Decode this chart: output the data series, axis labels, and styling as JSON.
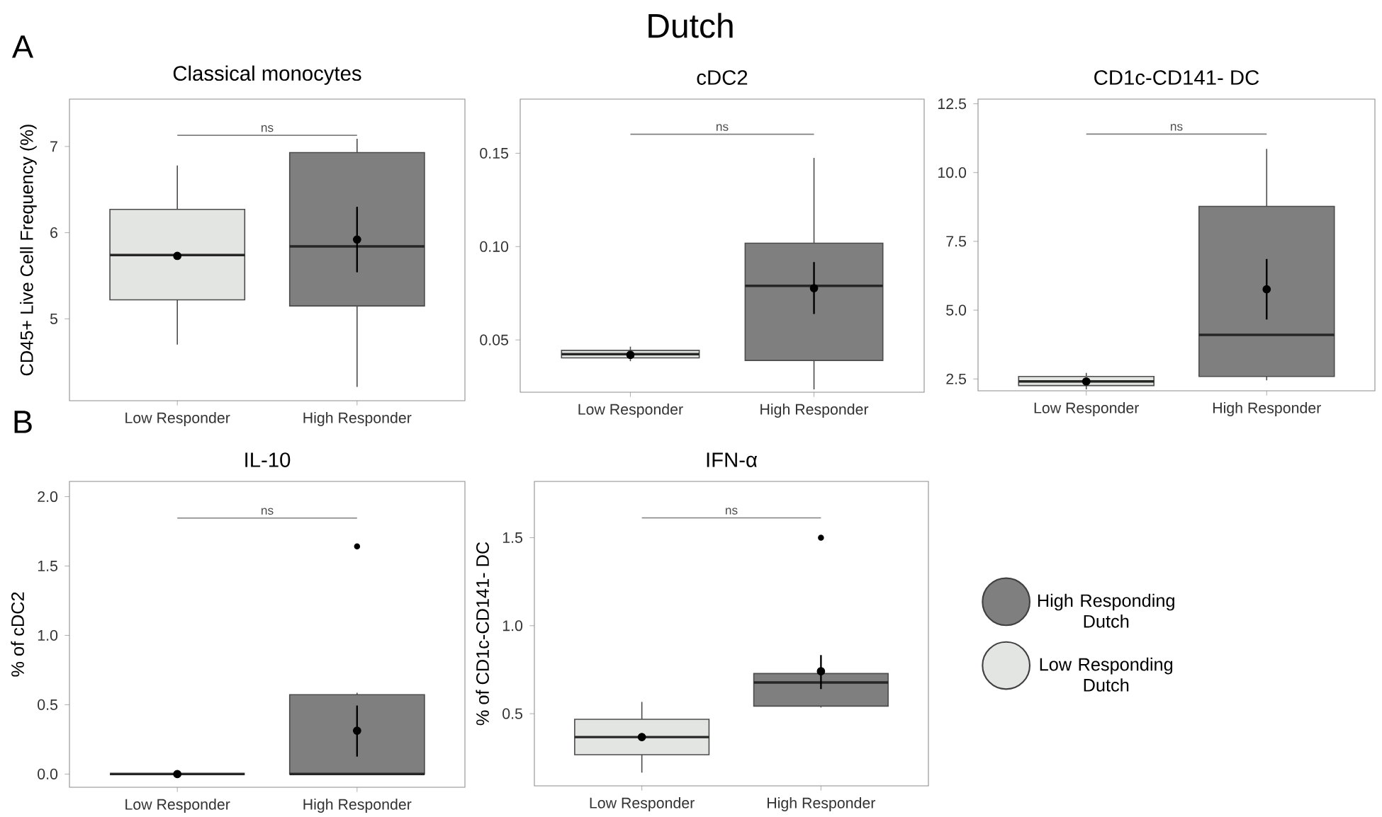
{
  "chart_data": [
    {
      "type": "other",
      "title": "Dutch",
      "annotations": [
        "A",
        "B"
      ]
    },
    {
      "type": "box",
      "title": "Classical monocytes",
      "ylabel": "CD45+ Live Cell Frequency (%)",
      "categories": [
        "Low Responder",
        "High Responder"
      ],
      "ylim": [
        4.05,
        7.55
      ],
      "yticks": [
        5,
        6,
        7
      ],
      "marker": "circle",
      "annotations": [
        "ns"
      ],
      "series": [
        {
          "color": "#e2e5e1",
          "boxes": [
            {
              "low": 4.7,
              "q1": 5.22,
              "median": 5.74,
              "q3": 6.27,
              "high": 6.78
            },
            null
          ]
        },
        {
          "color": "#7f7f7f",
          "boxes": [
            null,
            {
              "low": 4.21,
              "q1": 5.15,
              "median": 5.84,
              "q3": 6.93,
              "high": 7.09
            }
          ]
        },
        {
          "type": "scatter",
          "color": "#000000",
          "x": [
            "Low Responder",
            "High Responder"
          ],
          "values": [
            5.73,
            5.92
          ],
          "errors": [
            null,
            [
              5.54,
              6.3
            ]
          ]
        }
      ]
    },
    {
      "type": "box",
      "title": "cDC2",
      "categories": [
        "Low Responder",
        "High Responder"
      ],
      "ylim": [
        0.022,
        0.179
      ],
      "yticks": [
        0.05,
        {
          "value": 0.1,
          "label": "0.10"
        },
        0.15
      ],
      "marker": "circle",
      "annotations": [
        "ns"
      ],
      "series": [
        {
          "color": "#e2e5e1",
          "boxes": [
            {
              "low": 0.0386,
              "q1": 0.0404,
              "median": 0.0424,
              "q3": 0.0444,
              "high": 0.0464
            },
            null
          ]
        },
        {
          "color": "#7f7f7f",
          "boxes": [
            null,
            {
              "low": 0.0235,
              "q1": 0.039,
              "median": 0.079,
              "q3": 0.1018,
              "high": 0.1475
            }
          ]
        },
        {
          "type": "scatter",
          "color": "#000000",
          "x": [
            "Low Responder",
            "High Responder"
          ],
          "values": [
            0.042,
            0.0777
          ],
          "errors": [
            null,
            [
              0.0639,
              0.0917
            ]
          ]
        }
      ]
    },
    {
      "type": "box",
      "title": "CD1c-CD141- DC",
      "categories": [
        "Low Responder",
        "High Responder"
      ],
      "ylim": [
        2.07,
        12.67
      ],
      "yticks": [
        2.5,
        {
          "value": 5,
          "label": "5.0"
        },
        7.5,
        {
          "value": 10,
          "label": "10.0"
        },
        12.5
      ],
      "marker": "circle",
      "annotations": [
        "ns"
      ],
      "series": [
        {
          "color": "#e2e5e1",
          "boxes": [
            {
              "low": 2.12,
              "q1": 2.26,
              "median": 2.41,
              "q3": 2.59,
              "high": 2.72
            },
            null
          ]
        },
        {
          "color": "#7f7f7f",
          "boxes": [
            null,
            {
              "low": 2.45,
              "q1": 2.59,
              "median": 4.1,
              "q3": 8.77,
              "high": 10.86
            }
          ]
        },
        {
          "type": "scatter",
          "color": "#000000",
          "x": [
            "Low Responder",
            "High Responder"
          ],
          "values": [
            2.41,
            5.76
          ],
          "errors": [
            null,
            [
              4.66,
              6.86
            ]
          ]
        }
      ]
    },
    {
      "type": "box",
      "title": "IL-10",
      "ylabel": "% of cDC2",
      "categories": [
        "Low Responder",
        "High Responder"
      ],
      "ylim": [
        -0.095,
        2.11
      ],
      "yticks": [
        {
          "value": 0,
          "label": "0.0"
        },
        0.5,
        {
          "value": 1,
          "label": "1.0"
        },
        1.5,
        {
          "value": 2,
          "label": "2.0"
        }
      ],
      "marker": "circle",
      "annotations": [
        "ns"
      ],
      "series": [
        {
          "color": "#e2e5e1",
          "boxes": [
            {
              "low": 0,
              "q1": 0,
              "median": 0,
              "q3": 0,
              "high": 0
            },
            null
          ]
        },
        {
          "color": "#7f7f7f",
          "boxes": [
            null,
            {
              "low": 0,
              "q1": 0,
              "median": 0,
              "q3": 0.572,
              "high": 0.586,
              "outliers": [
                1.642
              ]
            }
          ]
        },
        {
          "type": "scatter",
          "color": "#000000",
          "x": [
            "Low Responder",
            "High Responder"
          ],
          "values": [
            0,
            0.313
          ],
          "errors": [
            null,
            [
              0.126,
              0.494
            ]
          ]
        }
      ]
    },
    {
      "type": "box",
      "title": "IFN-α",
      "ylabel": "% of CD1c-CD141- DC",
      "categories": [
        "Low Responder",
        "High Responder"
      ],
      "ylim": [
        0.09,
        1.82
      ],
      "yticks": [
        0.5,
        {
          "value": 1,
          "label": "1.0"
        },
        1.5
      ],
      "marker": "circle",
      "legend": "right",
      "annotations": [
        "ns"
      ],
      "series": [
        {
          "name": "High Responding Dutch",
          "color": "#7f7f7f",
          "boxes": [
            null,
            {
              "low": 0.535,
              "q1": 0.543,
              "median": 0.677,
              "q3": 0.728,
              "high": 0.73,
              "outliers": [
                1.5
              ]
            }
          ]
        },
        {
          "name": "Low Responding Dutch",
          "color": "#e2e5e1",
          "boxes": [
            {
              "low": 0.165,
              "q1": 0.267,
              "median": 0.367,
              "q3": 0.468,
              "high": 0.567
            },
            null
          ]
        },
        {
          "type": "scatter",
          "color": "#000000",
          "x": [
            "Low Responder",
            "High Responder"
          ],
          "values": [
            0.367,
            0.741
          ],
          "errors": [
            null,
            [
              0.64,
              0.833
            ]
          ]
        }
      ]
    }
  ]
}
